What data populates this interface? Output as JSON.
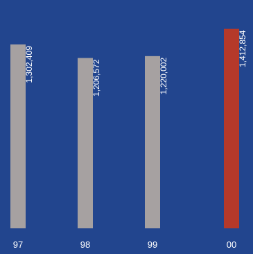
{
  "chart_data": {
    "type": "bar",
    "categories": [
      "97",
      "98",
      "99",
      "00"
    ],
    "values": [
      1302409,
      1206572,
      1220002,
      1412854
    ],
    "value_labels": [
      "1,302,409",
      "1,206,572",
      "1,220,002",
      "1,412,854"
    ],
    "ylim": [
      0,
      1470000
    ],
    "grid": false,
    "legend": "none",
    "title": "",
    "xlabel": "",
    "ylabel": "",
    "colors": {
      "background": "#22458e",
      "bar_default": "#a6a1a1",
      "bar_highlight": "#b5392a",
      "text": "#ffffff"
    },
    "highlight_index": 3
  }
}
